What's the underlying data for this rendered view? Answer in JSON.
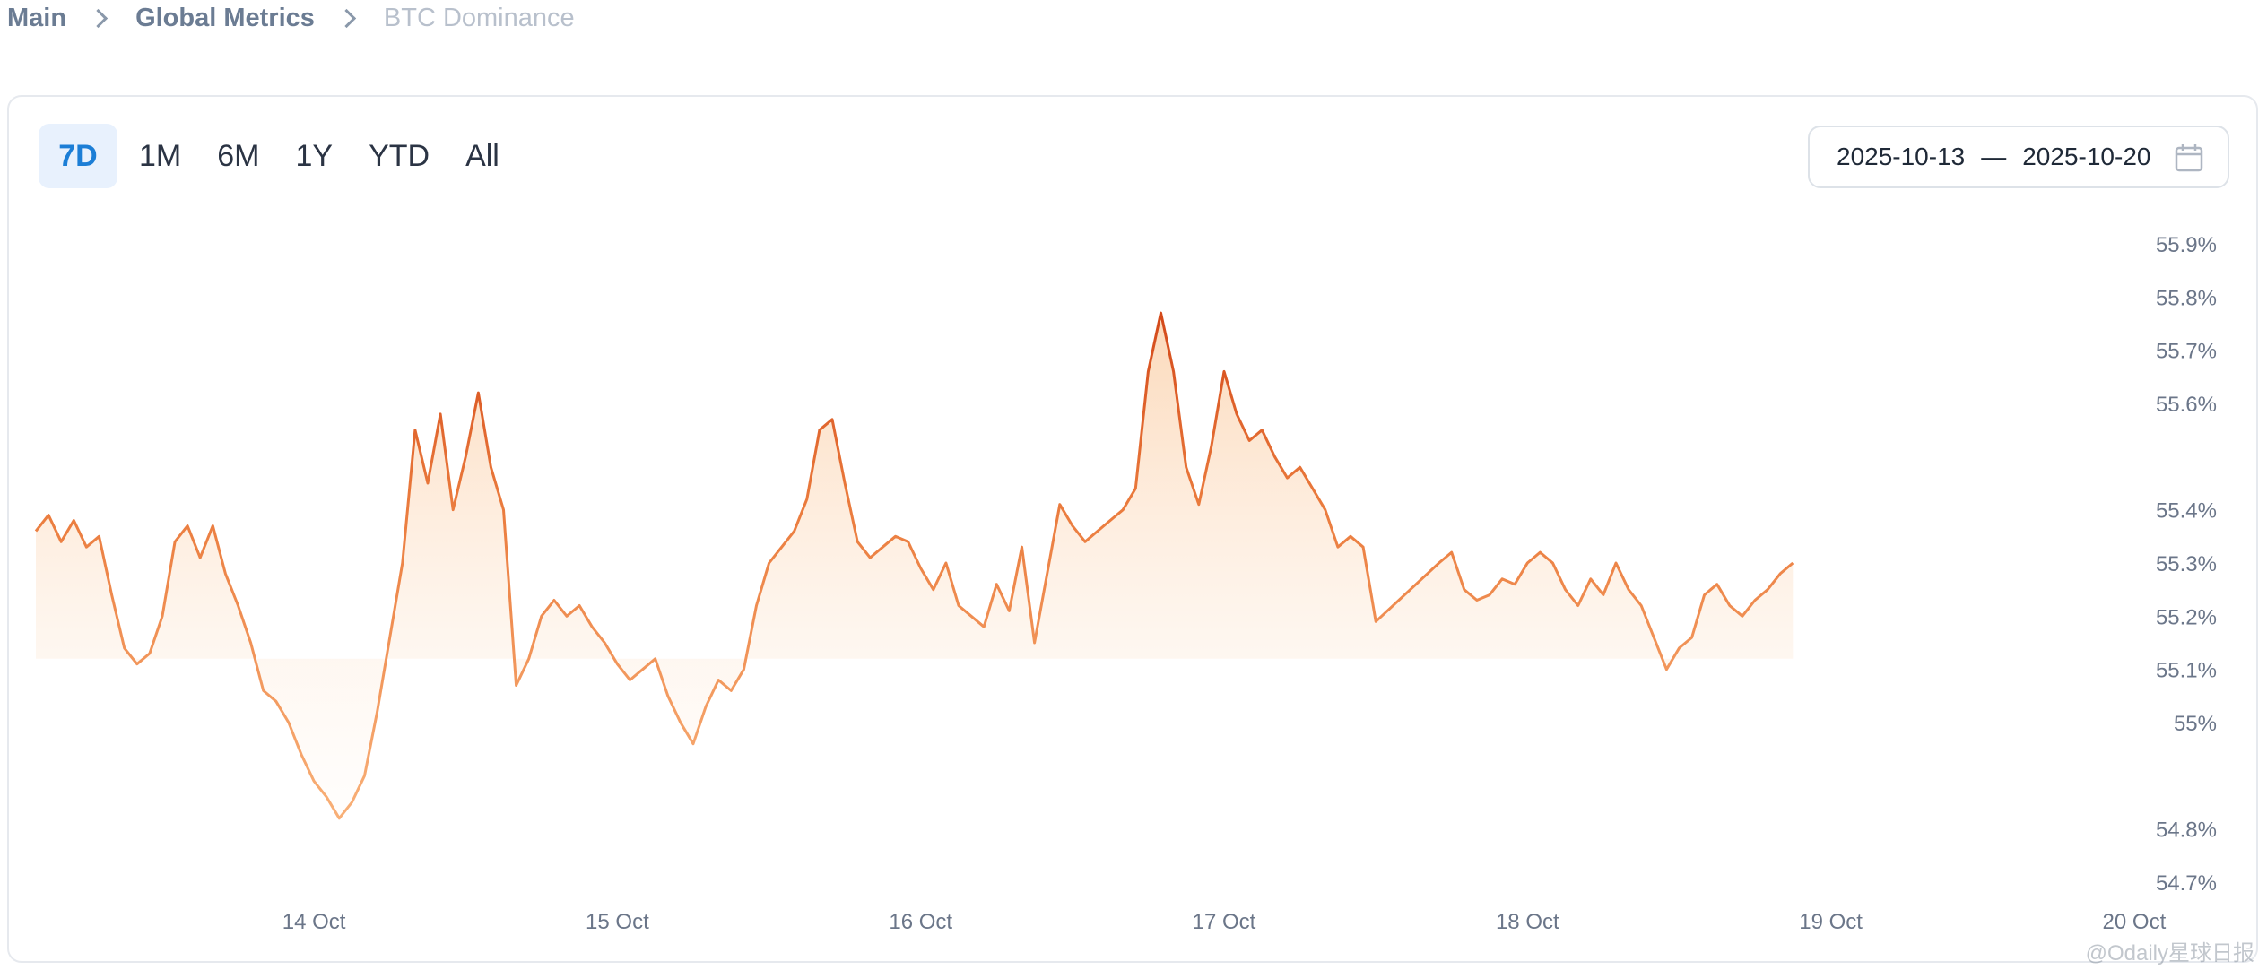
{
  "breadcrumb": {
    "items": [
      "Main",
      "Global Metrics",
      "BTC Dominance"
    ]
  },
  "range_buttons": [
    "7D",
    "1M",
    "6M",
    "1Y",
    "YTD",
    "All"
  ],
  "active_range": "7D",
  "date_range": {
    "start": "2025-10-13",
    "separator": "—",
    "end": "2025-10-20"
  },
  "watermark": "@Odaily星球日报",
  "colors": {
    "line_light": "#f6a86b",
    "line_dark": "#d9531e",
    "fill": "#fde7d3",
    "axis_text": "#6b7689",
    "accent": "#1c7ed6"
  },
  "chart_data": {
    "type": "area",
    "title": "",
    "xlabel": "",
    "ylabel": "",
    "x_ticks": [
      "14 Oct",
      "15 Oct",
      "16 Oct",
      "17 Oct",
      "18 Oct",
      "19 Oct",
      "20 Oct"
    ],
    "y_ticks": [
      "54.7%",
      "54.8%",
      "55%",
      "55.1%",
      "55.2%",
      "55.3%",
      "55.4%",
      "55.6%",
      "55.7%",
      "55.8%",
      "55.9%"
    ],
    "ylim": [
      54.7,
      55.9
    ],
    "xlim": [
      "2025-10-13 02:00",
      "2025-10-20 01:00"
    ],
    "grid": false,
    "legend": "none",
    "series": [
      {
        "values": [
          [
            "2025-10-13 02:00",
            55.36
          ],
          [
            "2025-10-13 03:00",
            55.39
          ],
          [
            "2025-10-13 04:00",
            55.34
          ],
          [
            "2025-10-13 05:00",
            55.38
          ],
          [
            "2025-10-13 06:00",
            55.33
          ],
          [
            "2025-10-13 07:00",
            55.35
          ],
          [
            "2025-10-13 08:00",
            55.24
          ],
          [
            "2025-10-13 09:00",
            55.14
          ],
          [
            "2025-10-13 10:00",
            55.11
          ],
          [
            "2025-10-13 11:00",
            55.13
          ],
          [
            "2025-10-13 12:00",
            55.2
          ],
          [
            "2025-10-13 13:00",
            55.34
          ],
          [
            "2025-10-13 14:00",
            55.37
          ],
          [
            "2025-10-13 15:00",
            55.31
          ],
          [
            "2025-10-13 16:00",
            55.37
          ],
          [
            "2025-10-13 17:00",
            55.28
          ],
          [
            "2025-10-13 18:00",
            55.22
          ],
          [
            "2025-10-13 19:00",
            55.15
          ],
          [
            "2025-10-13 20:00",
            55.06
          ],
          [
            "2025-10-13 21:00",
            55.04
          ],
          [
            "2025-10-13 22:00",
            55.0
          ],
          [
            "2025-10-13 23:00",
            54.94
          ],
          [
            "2025-10-14 00:00",
            54.89
          ],
          [
            "2025-10-14 01:00",
            54.86
          ],
          [
            "2025-10-14 02:00",
            54.82
          ],
          [
            "2025-10-14 03:00",
            54.85
          ],
          [
            "2025-10-14 04:00",
            54.9
          ],
          [
            "2025-10-14 05:00",
            55.02
          ],
          [
            "2025-10-14 06:00",
            55.16
          ],
          [
            "2025-10-14 07:00",
            55.3
          ],
          [
            "2025-10-14 08:00",
            55.55
          ],
          [
            "2025-10-14 09:00",
            55.45
          ],
          [
            "2025-10-14 10:00",
            55.58
          ],
          [
            "2025-10-14 11:00",
            55.4
          ],
          [
            "2025-10-14 12:00",
            55.5
          ],
          [
            "2025-10-14 13:00",
            55.62
          ],
          [
            "2025-10-14 14:00",
            55.48
          ],
          [
            "2025-10-14 15:00",
            55.4
          ],
          [
            "2025-10-14 16:00",
            55.07
          ],
          [
            "2025-10-14 17:00",
            55.12
          ],
          [
            "2025-10-14 18:00",
            55.2
          ],
          [
            "2025-10-14 19:00",
            55.23
          ],
          [
            "2025-10-14 20:00",
            55.2
          ],
          [
            "2025-10-14 21:00",
            55.22
          ],
          [
            "2025-10-14 22:00",
            55.18
          ],
          [
            "2025-10-14 23:00",
            55.15
          ],
          [
            "2025-10-15 00:00",
            55.11
          ],
          [
            "2025-10-15 01:00",
            55.08
          ],
          [
            "2025-10-15 02:00",
            55.1
          ],
          [
            "2025-10-15 03:00",
            55.12
          ],
          [
            "2025-10-15 04:00",
            55.05
          ],
          [
            "2025-10-15 05:00",
            55.0
          ],
          [
            "2025-10-15 06:00",
            54.96
          ],
          [
            "2025-10-15 07:00",
            55.03
          ],
          [
            "2025-10-15 08:00",
            55.08
          ],
          [
            "2025-10-15 09:00",
            55.06
          ],
          [
            "2025-10-15 10:00",
            55.1
          ],
          [
            "2025-10-15 11:00",
            55.22
          ],
          [
            "2025-10-15 12:00",
            55.3
          ],
          [
            "2025-10-15 13:00",
            55.33
          ],
          [
            "2025-10-15 14:00",
            55.36
          ],
          [
            "2025-10-15 15:00",
            55.42
          ],
          [
            "2025-10-15 16:00",
            55.55
          ],
          [
            "2025-10-15 17:00",
            55.57
          ],
          [
            "2025-10-15 18:00",
            55.45
          ],
          [
            "2025-10-15 19:00",
            55.34
          ],
          [
            "2025-10-15 20:00",
            55.31
          ],
          [
            "2025-10-15 21:00",
            55.33
          ],
          [
            "2025-10-15 22:00",
            55.35
          ],
          [
            "2025-10-15 23:00",
            55.34
          ],
          [
            "2025-10-16 00:00",
            55.29
          ],
          [
            "2025-10-16 01:00",
            55.25
          ],
          [
            "2025-10-16 02:00",
            55.3
          ],
          [
            "2025-10-16 03:00",
            55.22
          ],
          [
            "2025-10-16 04:00",
            55.2
          ],
          [
            "2025-10-16 05:00",
            55.18
          ],
          [
            "2025-10-16 06:00",
            55.26
          ],
          [
            "2025-10-16 07:00",
            55.21
          ],
          [
            "2025-10-16 08:00",
            55.33
          ],
          [
            "2025-10-16 09:00",
            55.15
          ],
          [
            "2025-10-16 10:00",
            55.28
          ],
          [
            "2025-10-16 11:00",
            55.41
          ],
          [
            "2025-10-16 12:00",
            55.37
          ],
          [
            "2025-10-16 13:00",
            55.34
          ],
          [
            "2025-10-16 14:00",
            55.36
          ],
          [
            "2025-10-16 15:00",
            55.38
          ],
          [
            "2025-10-16 16:00",
            55.4
          ],
          [
            "2025-10-16 17:00",
            55.44
          ],
          [
            "2025-10-16 18:00",
            55.66
          ],
          [
            "2025-10-16 19:00",
            55.77
          ],
          [
            "2025-10-16 20:00",
            55.66
          ],
          [
            "2025-10-16 21:00",
            55.48
          ],
          [
            "2025-10-16 22:00",
            55.41
          ],
          [
            "2025-10-16 23:00",
            55.52
          ],
          [
            "2025-10-17 00:00",
            55.66
          ],
          [
            "2025-10-17 01:00",
            55.58
          ],
          [
            "2025-10-17 02:00",
            55.53
          ],
          [
            "2025-10-17 03:00",
            55.55
          ],
          [
            "2025-10-17 04:00",
            55.5
          ],
          [
            "2025-10-17 05:00",
            55.46
          ],
          [
            "2025-10-17 06:00",
            55.48
          ],
          [
            "2025-10-17 07:00",
            55.44
          ],
          [
            "2025-10-17 08:00",
            55.4
          ],
          [
            "2025-10-17 09:00",
            55.33
          ],
          [
            "2025-10-17 10:00",
            55.35
          ],
          [
            "2025-10-17 11:00",
            55.33
          ],
          [
            "2025-10-17 12:00",
            55.19
          ],
          [
            "2025-10-17 17:00",
            55.3
          ],
          [
            "2025-10-17 18:00",
            55.32
          ],
          [
            "2025-10-17 19:00",
            55.25
          ],
          [
            "2025-10-17 20:00",
            55.23
          ],
          [
            "2025-10-17 21:00",
            55.24
          ],
          [
            "2025-10-17 22:00",
            55.27
          ],
          [
            "2025-10-17 23:00",
            55.26
          ],
          [
            "2025-10-18 00:00",
            55.3
          ],
          [
            "2025-10-18 01:00",
            55.32
          ],
          [
            "2025-10-18 02:00",
            55.3
          ],
          [
            "2025-10-18 03:00",
            55.25
          ],
          [
            "2025-10-18 04:00",
            55.22
          ],
          [
            "2025-10-18 05:00",
            55.27
          ],
          [
            "2025-10-18 06:00",
            55.24
          ],
          [
            "2025-10-18 07:00",
            55.3
          ],
          [
            "2025-10-18 08:00",
            55.25
          ],
          [
            "2025-10-18 09:00",
            55.22
          ],
          [
            "2025-10-18 10:00",
            55.16
          ],
          [
            "2025-10-18 11:00",
            55.1
          ],
          [
            "2025-10-18 12:00",
            55.14
          ],
          [
            "2025-10-18 13:00",
            55.16
          ],
          [
            "2025-10-18 14:00",
            55.24
          ],
          [
            "2025-10-18 15:00",
            55.26
          ],
          [
            "2025-10-18 16:00",
            55.22
          ],
          [
            "2025-10-18 17:00",
            55.2
          ],
          [
            "2025-10-18 18:00",
            55.23
          ],
          [
            "2025-10-18 19:00",
            55.25
          ],
          [
            "2025-10-18 20:00",
            55.28
          ],
          [
            "2025-10-18 21:00",
            55.3
          ]
        ]
      }
    ]
  }
}
